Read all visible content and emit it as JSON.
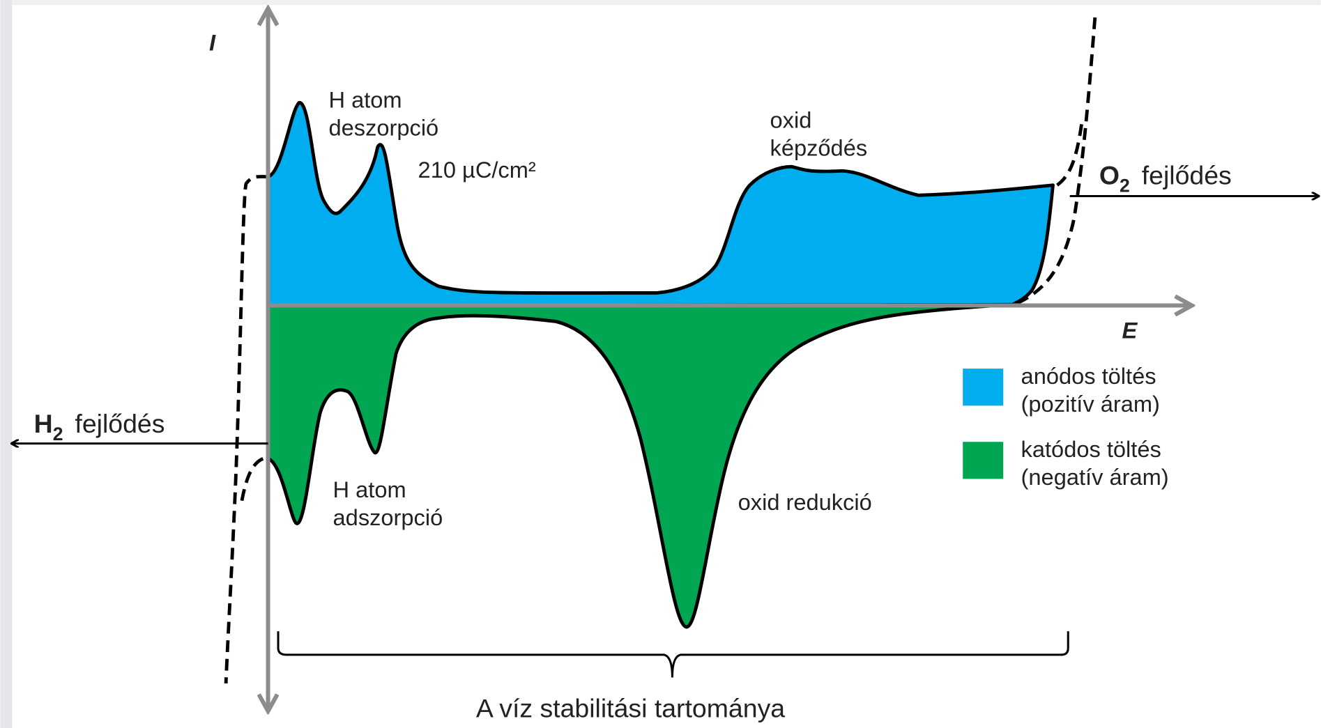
{
  "axes": {
    "y_label": "I",
    "x_label": "E"
  },
  "annotations": {
    "desorption": [
      "H atom",
      "deszorpció"
    ],
    "charge": "210 µC/cm²",
    "oxide_formation": [
      "oxid",
      "képződés"
    ],
    "adsorption": [
      "H atom",
      "adszorpció"
    ],
    "oxide_reduction": "oxid redukció",
    "o2_evolution": {
      "element": "O",
      "subscript": "2",
      "text": "fejlődés"
    },
    "h2_evolution": {
      "element": "H",
      "subscript": "2",
      "text": "fejlődés"
    },
    "stability_range": "A víz stabilitási tartománya"
  },
  "legend": [
    {
      "lines": [
        "anódos töltés",
        "(pozitív áram)"
      ],
      "color": "#00aeef"
    },
    {
      "lines": [
        "katódos töltés",
        "(negatív áram)"
      ],
      "color": "#00a651"
    }
  ]
}
